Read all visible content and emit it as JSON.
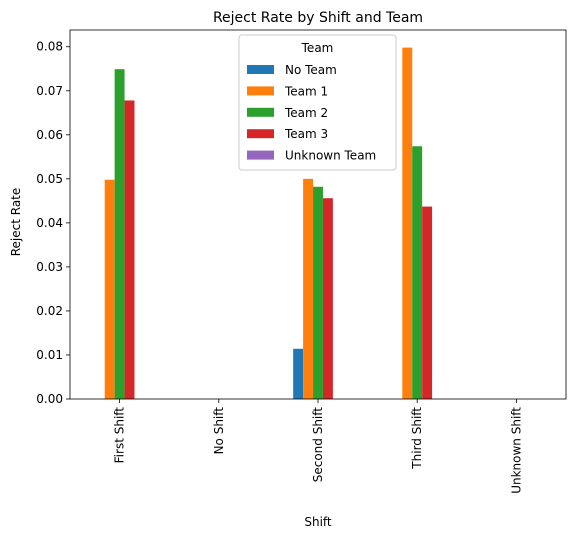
{
  "chart_data": {
    "type": "bar",
    "title": "Reject Rate by Shift and Team",
    "xlabel": "Shift",
    "ylabel": "Reject Rate",
    "ylim": [
      0,
      0.0838
    ],
    "yticks": [
      "0.00",
      "0.01",
      "0.02",
      "0.03",
      "0.04",
      "0.05",
      "0.06",
      "0.07",
      "0.08"
    ],
    "grid": false,
    "legend_placement": "top-center",
    "legend_title": "Team",
    "categories": [
      "First Shift",
      "No Shift",
      "Second Shift",
      "Third Shift",
      "Unknown Shift"
    ],
    "series": [
      {
        "name": "No Team",
        "color": "#1f77b4",
        "values": [
          null,
          null,
          0.0114,
          null,
          null
        ]
      },
      {
        "name": "Team 1",
        "color": "#ff7f0e",
        "values": [
          0.0498,
          null,
          0.05,
          0.0798,
          null
        ]
      },
      {
        "name": "Team 2",
        "color": "#2ca02c",
        "values": [
          0.0749,
          null,
          0.0482,
          0.0574,
          null
        ]
      },
      {
        "name": "Team 3",
        "color": "#d62728",
        "values": [
          0.0678,
          null,
          0.0456,
          0.0437,
          null
        ]
      },
      {
        "name": "Unknown Team",
        "color": "#9467bd",
        "values": [
          null,
          null,
          null,
          null,
          null
        ]
      }
    ]
  }
}
